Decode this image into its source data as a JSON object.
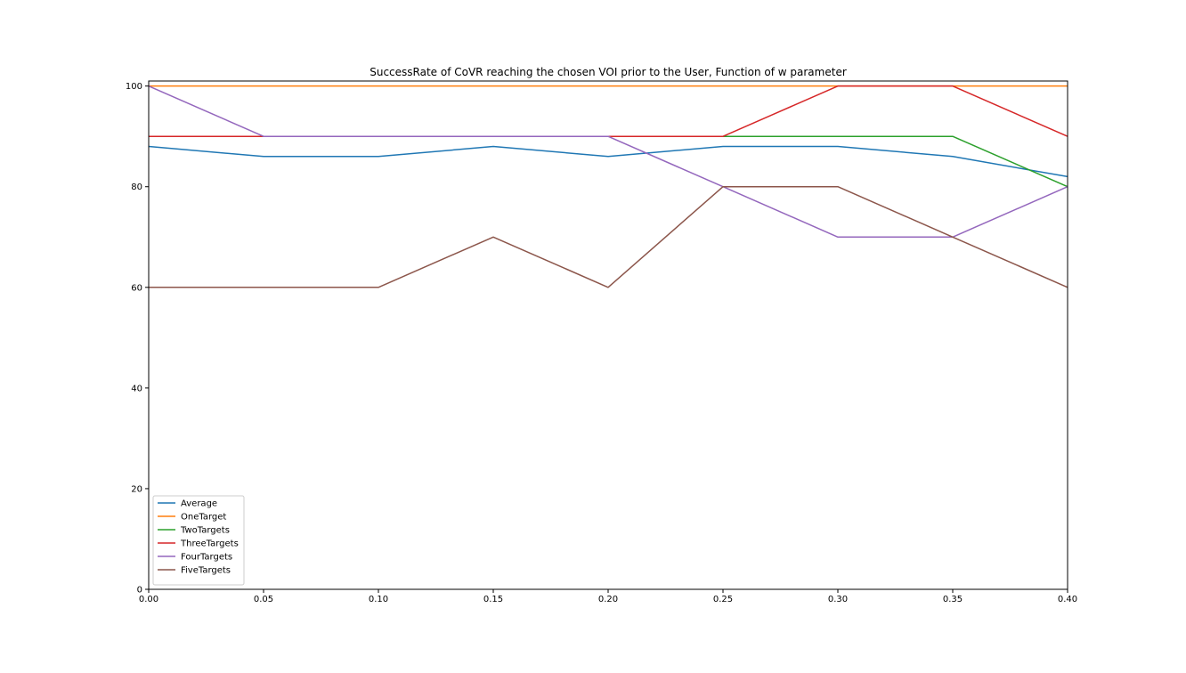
{
  "chart_data": {
    "type": "line",
    "title": "SuccessRate of CoVR reaching the chosen VOI prior to the User, Function of w parameter",
    "xlabel": "",
    "ylabel": "",
    "x": [
      0.0,
      0.05,
      0.1,
      0.15,
      0.2,
      0.25,
      0.3,
      0.35,
      0.4
    ],
    "xlim": [
      0.0,
      0.4
    ],
    "ylim": [
      0,
      101
    ],
    "xticks": [
      0.0,
      0.05,
      0.1,
      0.15,
      0.2,
      0.25,
      0.3,
      0.35,
      0.4
    ],
    "xtick_labels": [
      "0.00",
      "0.05",
      "0.10",
      "0.15",
      "0.20",
      "0.25",
      "0.30",
      "0.35",
      "0.40"
    ],
    "yticks": [
      0,
      20,
      40,
      60,
      80,
      100
    ],
    "ytick_labels": [
      "0",
      "20",
      "40",
      "60",
      "80",
      "100"
    ],
    "grid": false,
    "legend_position": "lower-left",
    "series": [
      {
        "name": "Average",
        "color": "#1f77b4",
        "values": [
          88,
          86,
          86,
          88,
          86,
          88,
          88,
          86,
          82
        ]
      },
      {
        "name": "OneTarget",
        "color": "#ff7f0e",
        "values": [
          100,
          100,
          100,
          100,
          100,
          100,
          100,
          100,
          100
        ]
      },
      {
        "name": "TwoTargets",
        "color": "#2ca02c",
        "values": [
          90,
          90,
          90,
          90,
          90,
          90,
          90,
          90,
          80
        ]
      },
      {
        "name": "ThreeTargets",
        "color": "#d62728",
        "values": [
          90,
          90,
          90,
          90,
          90,
          90,
          100,
          100,
          90
        ]
      },
      {
        "name": "FourTargets",
        "color": "#9467bd",
        "values": [
          100,
          90,
          90,
          90,
          90,
          80,
          70,
          70,
          80
        ]
      },
      {
        "name": "FiveTargets",
        "color": "#8c564b",
        "values": [
          60,
          60,
          60,
          70,
          60,
          80,
          80,
          70,
          60
        ]
      }
    ]
  }
}
